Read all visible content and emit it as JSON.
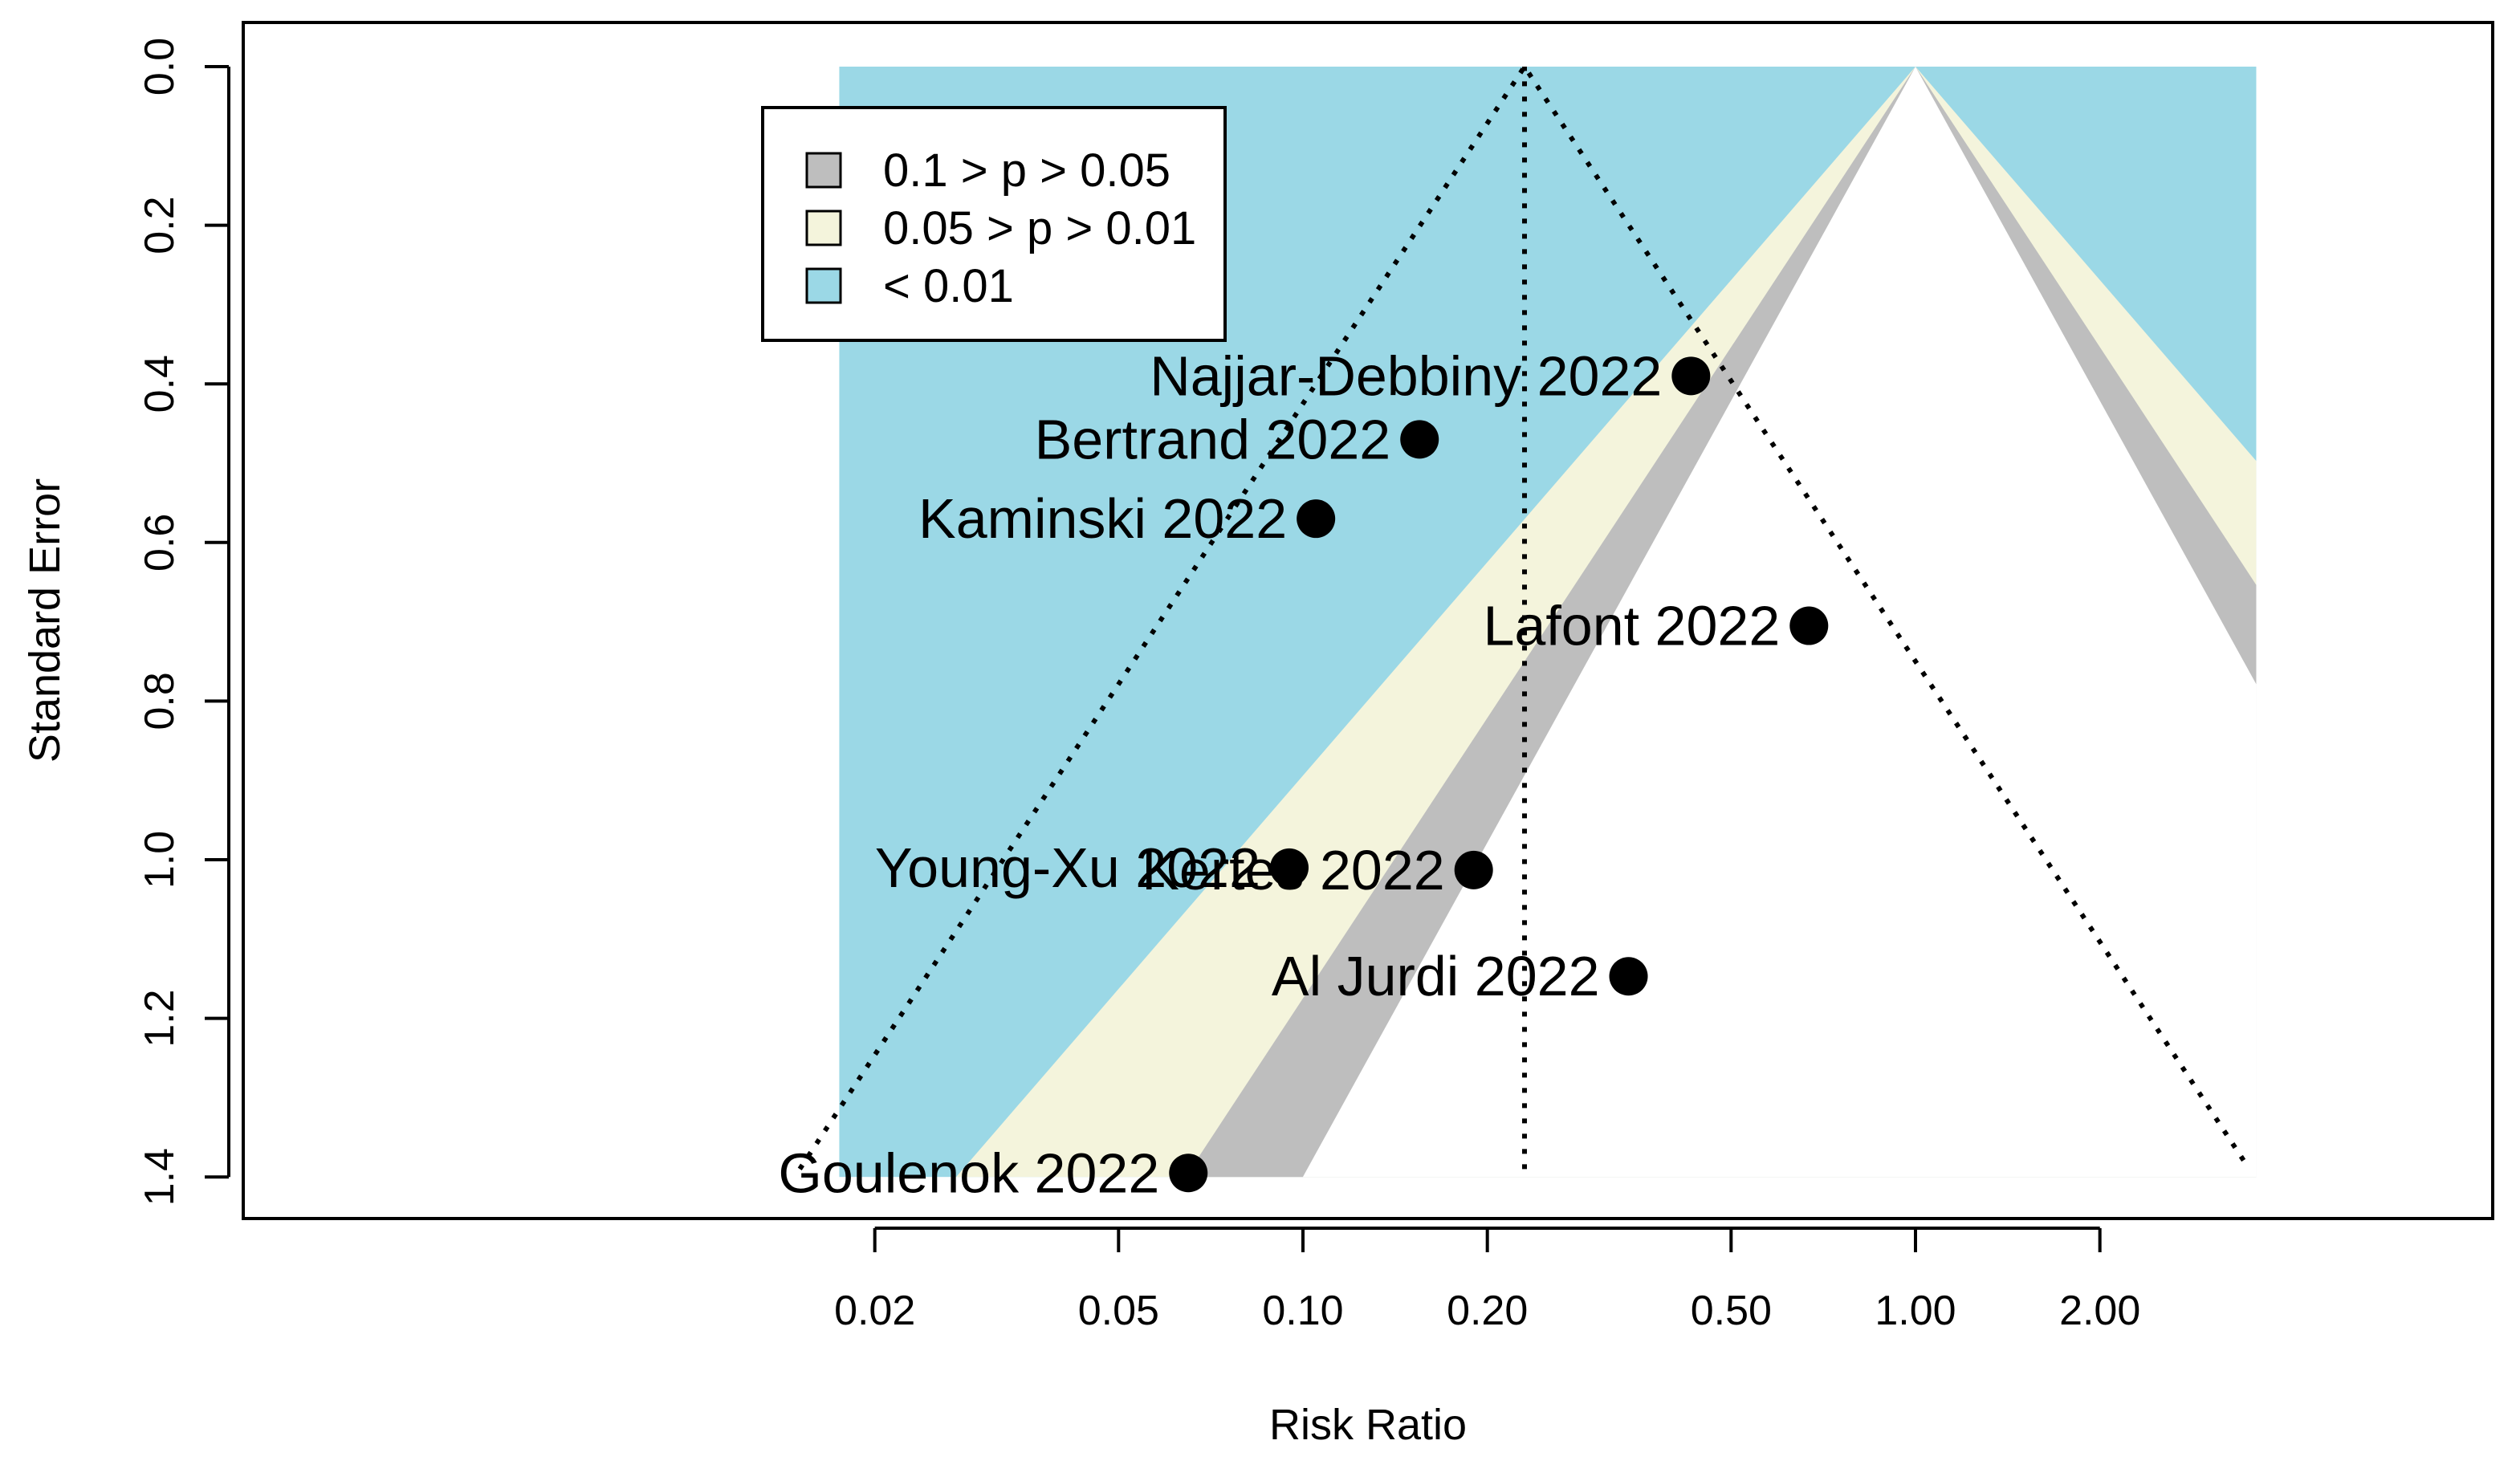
{
  "chart_data": {
    "type": "scatter",
    "subtype": "contour-enhanced funnel plot",
    "xlabel": "Risk Ratio",
    "ylabel": "Standard Error",
    "x_scale": "log",
    "x_ticks": [
      0.02,
      0.05,
      0.1,
      0.2,
      0.5,
      1.0,
      2.0
    ],
    "x_tick_labels": [
      "0.02",
      "0.05",
      "0.10",
      "0.20",
      "0.50",
      "1.00",
      "2.00"
    ],
    "y_ticks": [
      0.0,
      0.2,
      0.4,
      0.6,
      0.8,
      1.0,
      1.2,
      1.4
    ],
    "y_tick_labels": [
      "0.0",
      "0.2",
      "0.4",
      "0.6",
      "0.8",
      "1.0",
      "1.2",
      "1.4"
    ],
    "y_reversed": true,
    "xlim": [
      0.0145,
      4.3
    ],
    "ylim": [
      0,
      1.45
    ],
    "contour_region": {
      "x_range": [
        0.0175,
        3.6
      ],
      "center": 1.0
    },
    "pooled_estimate": 0.23,
    "legend": {
      "position": "top-left",
      "entries": [
        {
          "label": "0.1 > p > 0.05",
          "color": "#bebebe"
        },
        {
          "label": "0.05 > p > 0.01",
          "color": "#f4f4dc"
        },
        {
          "label": "< 0.01",
          "color": "#9bd8e6"
        }
      ]
    },
    "points": [
      {
        "label": "Najjar-Debbiny 2022",
        "rr": 0.43,
        "se": 0.39
      },
      {
        "label": "Bertrand 2022",
        "rr": 0.155,
        "se": 0.47
      },
      {
        "label": "Kaminski 2022",
        "rr": 0.105,
        "se": 0.57
      },
      {
        "label": "Lafont 2022",
        "rr": 0.67,
        "se": 0.705
      },
      {
        "label": "Young-Xu 2022",
        "rr": 0.095,
        "se": 1.01
      },
      {
        "label": "Kertes 2022",
        "rr": 0.19,
        "se": 1.013
      },
      {
        "label": "Al Jurdi 2022",
        "rr": 0.34,
        "se": 1.147
      },
      {
        "label": "Goulenok 2022",
        "rr": 0.065,
        "se": 1.395
      }
    ],
    "colors": {
      "band_p10": "#bebebe",
      "band_p05": "#f4f4dc",
      "band_p01": "#9bd8e6",
      "points": "#000000"
    }
  }
}
